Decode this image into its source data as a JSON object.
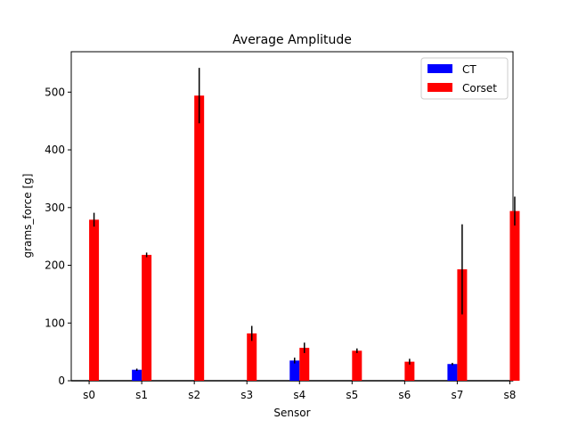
{
  "chart_data": {
    "type": "bar",
    "title": "Average Amplitude",
    "xlabel": "Sensor",
    "ylabel": "grams_force [g]",
    "categories": [
      "s0",
      "s1",
      "s2",
      "s3",
      "s4",
      "s5",
      "s6",
      "s7",
      "s8"
    ],
    "ylim": [
      0,
      570
    ],
    "yticks": [
      0,
      100,
      200,
      300,
      400,
      500
    ],
    "grid": false,
    "legend_position": "top-right",
    "series": [
      {
        "name": "CT",
        "color": "#0000ff",
        "values": [
          0,
          19,
          0,
          0,
          35,
          0,
          0,
          29,
          0
        ],
        "errors": [
          0,
          2,
          0,
          0,
          5,
          0,
          0,
          2,
          0
        ]
      },
      {
        "name": "Corset",
        "color": "#ff0000",
        "values": [
          279,
          218,
          494,
          82,
          57,
          52,
          33,
          193,
          294
        ],
        "errors": [
          12,
          4,
          48,
          13,
          9,
          4,
          5,
          78,
          25
        ]
      }
    ]
  }
}
